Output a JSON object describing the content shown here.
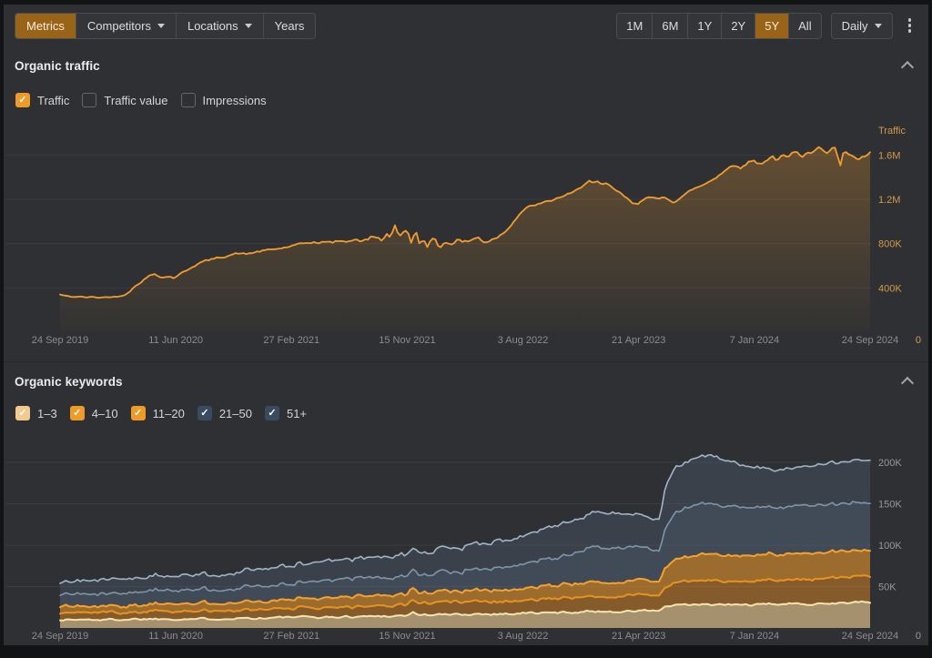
{
  "toolbar": {
    "left_tabs": [
      {
        "name": "metrics",
        "label": "Metrics",
        "selected": true,
        "caret": false
      },
      {
        "name": "competitors",
        "label": "Competitors",
        "selected": false,
        "caret": true
      },
      {
        "name": "locations",
        "label": "Locations",
        "selected": false,
        "caret": true
      },
      {
        "name": "years",
        "label": "Years",
        "selected": false,
        "caret": false
      }
    ],
    "range_buttons": [
      {
        "label": "1M",
        "selected": false
      },
      {
        "label": "6M",
        "selected": false
      },
      {
        "label": "1Y",
        "selected": false
      },
      {
        "label": "2Y",
        "selected": false
      },
      {
        "label": "5Y",
        "selected": true
      },
      {
        "label": "All",
        "selected": false
      }
    ],
    "granularity": {
      "label": "Daily"
    }
  },
  "traffic_section": {
    "title": "Organic traffic",
    "metrics": [
      {
        "label": "Traffic",
        "checked": true,
        "style": "orange"
      },
      {
        "label": "Traffic value",
        "checked": false,
        "style": "none"
      },
      {
        "label": "Impressions",
        "checked": false,
        "style": "none"
      }
    ]
  },
  "keywords_section": {
    "title": "Organic keywords",
    "positions": [
      {
        "label": "1–3",
        "checked": true,
        "style": "pale"
      },
      {
        "label": "4–10",
        "checked": true,
        "style": "orange"
      },
      {
        "label": "11–20",
        "checked": true,
        "style": "orange"
      },
      {
        "label": "21–50",
        "checked": true,
        "style": "slate"
      },
      {
        "label": "51+",
        "checked": true,
        "style": "slate"
      }
    ]
  },
  "colors": {
    "accent_orange": "#ef9b28",
    "selected_button_bg": "#9a6418",
    "panel_bg": "#2e3033",
    "grid_line": "#3a3c3f",
    "date_label": "#8b8d90",
    "traffic_axis": "#d69a45",
    "keywords_axis": "#96989b"
  },
  "chart_data": [
    {
      "type": "line",
      "title": "Organic traffic",
      "legend": "Traffic",
      "unit": "thousands of visits",
      "x_tick_labels": [
        "24 Sep 2019",
        "11 Jun 2020",
        "27 Feb 2021",
        "15 Nov 2021",
        "3 Aug 2022",
        "21 Apr 2023",
        "7 Jan 2024",
        "24 Sep 2024"
      ],
      "y_ticks": [
        {
          "v": 400,
          "label": "400K"
        },
        {
          "v": 800,
          "label": "800K"
        },
        {
          "v": 1200,
          "label": "1.2M"
        },
        {
          "v": 1600,
          "label": "1.6M"
        }
      ],
      "y_zero_label": "0",
      "ylim": [
        0,
        1850
      ],
      "line_color": "#f39d2f",
      "fill_color": "242,157,47",
      "points": [
        [
          0.0,
          340
        ],
        [
          0.008,
          326
        ],
        [
          0.016,
          318
        ],
        [
          0.024,
          322
        ],
        [
          0.032,
          314
        ],
        [
          0.04,
          318
        ],
        [
          0.048,
          312
        ],
        [
          0.056,
          316
        ],
        [
          0.064,
          318
        ],
        [
          0.072,
          322
        ],
        [
          0.08,
          338
        ],
        [
          0.088,
          384
        ],
        [
          0.096,
          436
        ],
        [
          0.104,
          478
        ],
        [
          0.11,
          506
        ],
        [
          0.116,
          528
        ],
        [
          0.122,
          512
        ],
        [
          0.128,
          494
        ],
        [
          0.134,
          506
        ],
        [
          0.14,
          492
        ],
        [
          0.148,
          524
        ],
        [
          0.156,
          558
        ],
        [
          0.164,
          596
        ],
        [
          0.172,
          626
        ],
        [
          0.18,
          644
        ],
        [
          0.19,
          662
        ],
        [
          0.2,
          680
        ],
        [
          0.21,
          700
        ],
        [
          0.22,
          712
        ],
        [
          0.23,
          704
        ],
        [
          0.24,
          722
        ],
        [
          0.252,
          736
        ],
        [
          0.264,
          748
        ],
        [
          0.276,
          762
        ],
        [
          0.286,
          778
        ],
        [
          0.296,
          792
        ],
        [
          0.306,
          806
        ],
        [
          0.314,
          816
        ],
        [
          0.32,
          800
        ],
        [
          0.328,
          822
        ],
        [
          0.336,
          810
        ],
        [
          0.344,
          826
        ],
        [
          0.352,
          814
        ],
        [
          0.36,
          832
        ],
        [
          0.368,
          842
        ],
        [
          0.376,
          818
        ],
        [
          0.384,
          852
        ],
        [
          0.39,
          872
        ],
        [
          0.396,
          820
        ],
        [
          0.402,
          902
        ],
        [
          0.408,
          842
        ],
        [
          0.414,
          948
        ],
        [
          0.419,
          858
        ],
        [
          0.424,
          906
        ],
        [
          0.429,
          952
        ],
        [
          0.434,
          790
        ],
        [
          0.439,
          930
        ],
        [
          0.444,
          800
        ],
        [
          0.449,
          868
        ],
        [
          0.454,
          786
        ],
        [
          0.46,
          838
        ],
        [
          0.468,
          772
        ],
        [
          0.476,
          822
        ],
        [
          0.484,
          800
        ],
        [
          0.492,
          842
        ],
        [
          0.5,
          812
        ],
        [
          0.508,
          832
        ],
        [
          0.516,
          852
        ],
        [
          0.524,
          822
        ],
        [
          0.532,
          842
        ],
        [
          0.54,
          862
        ],
        [
          0.548,
          902
        ],
        [
          0.554,
          948
        ],
        [
          0.56,
          1002
        ],
        [
          0.566,
          1058
        ],
        [
          0.571,
          1098
        ],
        [
          0.578,
          1128
        ],
        [
          0.586,
          1148
        ],
        [
          0.594,
          1162
        ],
        [
          0.602,
          1178
        ],
        [
          0.61,
          1198
        ],
        [
          0.618,
          1222
        ],
        [
          0.626,
          1242
        ],
        [
          0.634,
          1262
        ],
        [
          0.642,
          1298
        ],
        [
          0.648,
          1348
        ],
        [
          0.654,
          1378
        ],
        [
          0.658,
          1340
        ],
        [
          0.662,
          1362
        ],
        [
          0.668,
          1326
        ],
        [
          0.674,
          1338
        ],
        [
          0.682,
          1302
        ],
        [
          0.69,
          1262
        ],
        [
          0.698,
          1218
        ],
        [
          0.706,
          1166
        ],
        [
          0.712,
          1152
        ],
        [
          0.718,
          1192
        ],
        [
          0.724,
          1228
        ],
        [
          0.73,
          1216
        ],
        [
          0.738,
          1196
        ],
        [
          0.746,
          1222
        ],
        [
          0.752,
          1198
        ],
        [
          0.758,
          1178
        ],
        [
          0.764,
          1206
        ],
        [
          0.772,
          1246
        ],
        [
          0.78,
          1288
        ],
        [
          0.788,
          1312
        ],
        [
          0.796,
          1338
        ],
        [
          0.804,
          1376
        ],
        [
          0.812,
          1418
        ],
        [
          0.82,
          1458
        ],
        [
          0.828,
          1496
        ],
        [
          0.836,
          1518
        ],
        [
          0.842,
          1488
        ],
        [
          0.848,
          1532
        ],
        [
          0.857,
          1552
        ],
        [
          0.864,
          1518
        ],
        [
          0.872,
          1562
        ],
        [
          0.88,
          1588
        ],
        [
          0.886,
          1548
        ],
        [
          0.892,
          1598
        ],
        [
          0.898,
          1566
        ],
        [
          0.904,
          1612
        ],
        [
          0.91,
          1632
        ],
        [
          0.916,
          1596
        ],
        [
          0.922,
          1648
        ],
        [
          0.928,
          1614
        ],
        [
          0.934,
          1654
        ],
        [
          0.94,
          1662
        ],
        [
          0.946,
          1620
        ],
        [
          0.952,
          1660
        ],
        [
          0.958,
          1664
        ],
        [
          0.963,
          1488
        ],
        [
          0.968,
          1638
        ],
        [
          0.974,
          1602
        ],
        [
          0.98,
          1568
        ],
        [
          0.985,
          1544
        ],
        [
          0.99,
          1572
        ],
        [
          0.995,
          1592
        ],
        [
          1.0,
          1618
        ]
      ]
    },
    {
      "type": "stacked_area",
      "title": "Organic keywords",
      "unit": "thousands of keywords",
      "x_tick_labels": [
        "24 Sep 2019",
        "11 Jun 2020",
        "27 Feb 2021",
        "15 Nov 2021",
        "3 Aug 2022",
        "21 Apr 2023",
        "7 Jan 2024",
        "24 Sep 2024"
      ],
      "y_ticks": [
        {
          "v": 50,
          "label": "50K"
        },
        {
          "v": 100,
          "label": "100K"
        },
        {
          "v": 150,
          "label": "150K"
        },
        {
          "v": 200,
          "label": "200K"
        }
      ],
      "y_zero_label": "0",
      "ylim": [
        0,
        225
      ],
      "x": [
        0,
        0.03,
        0.06,
        0.1,
        0.143,
        0.18,
        0.22,
        0.25,
        0.286,
        0.33,
        0.38,
        0.42,
        0.429,
        0.435,
        0.443,
        0.45,
        0.48,
        0.52,
        0.55,
        0.571,
        0.6,
        0.63,
        0.65,
        0.67,
        0.7,
        0.72,
        0.74,
        0.748,
        0.76,
        0.78,
        0.8,
        0.82,
        0.84,
        0.857,
        0.87,
        0.88,
        0.9,
        0.92,
        0.94,
        0.96,
        0.98,
        1.0
      ],
      "series": [
        {
          "name": "1–3",
          "fill": "rgba(245,210,150,0.60)",
          "line": "#f6e3ae",
          "lw": 2,
          "values": [
            10,
            10,
            10,
            11,
            11,
            11,
            12,
            12,
            13,
            13,
            14,
            15,
            15,
            19,
            16,
            16,
            16,
            17,
            17,
            18,
            18,
            19,
            20,
            20,
            20,
            21,
            21,
            26,
            27,
            28,
            28,
            28,
            28,
            28,
            28,
            29,
            29,
            29,
            30,
            30,
            31,
            31
          ]
        },
        {
          "name": "4–10",
          "fill": "rgba(255,153,35,0.42)",
          "line": "#e9931f",
          "lw": 2,
          "values": [
            8,
            9,
            9,
            9,
            10,
            10,
            10,
            11,
            11,
            12,
            12,
            13,
            13,
            15,
            14,
            14,
            15,
            15,
            16,
            16,
            17,
            17,
            18,
            18,
            19,
            19,
            19,
            24,
            27,
            29,
            29,
            28,
            28,
            28,
            29,
            28,
            29,
            30,
            30,
            31,
            31,
            32
          ]
        },
        {
          "name": "11–20",
          "fill": "rgba(255,163,40,0.52)",
          "line": "#f7a12c",
          "lw": 2,
          "values": [
            8,
            8,
            8,
            8,
            9,
            9,
            10,
            10,
            11,
            11,
            12,
            12,
            12,
            14,
            13,
            13,
            13,
            14,
            14,
            14,
            15,
            16,
            16,
            17,
            17,
            17,
            17,
            25,
            28,
            31,
            32,
            32,
            31,
            31,
            31,
            31,
            31,
            31,
            31,
            31,
            31,
            32
          ]
        },
        {
          "name": "21–50",
          "fill": "rgba(96,121,148,0.38)",
          "line": "#7e95aa",
          "lw": 1.6,
          "values": [
            14,
            15,
            15,
            16,
            16,
            17,
            17,
            19,
            19,
            21,
            22,
            22,
            22,
            22,
            23,
            23,
            24,
            26,
            28,
            30,
            32,
            36,
            41,
            42,
            42,
            39,
            38,
            50,
            56,
            60,
            61,
            60,
            59,
            58,
            58,
            57,
            57,
            58,
            58,
            58,
            58,
            57
          ]
        },
        {
          "name": "51+",
          "fill": "rgba(86,106,128,0.30)",
          "line": "#a2b4c6",
          "lw": 1.6,
          "values": [
            15,
            16,
            16,
            17,
            18,
            18,
            19,
            20,
            22,
            23,
            24,
            26,
            26,
            26,
            27,
            27,
            29,
            31,
            33,
            35,
            38,
            40,
            40,
            43,
            40,
            38,
            38,
            50,
            54,
            57,
            58,
            56,
            52,
            50,
            47,
            45,
            46,
            48,
            50,
            51,
            51,
            51
          ]
        }
      ]
    }
  ]
}
